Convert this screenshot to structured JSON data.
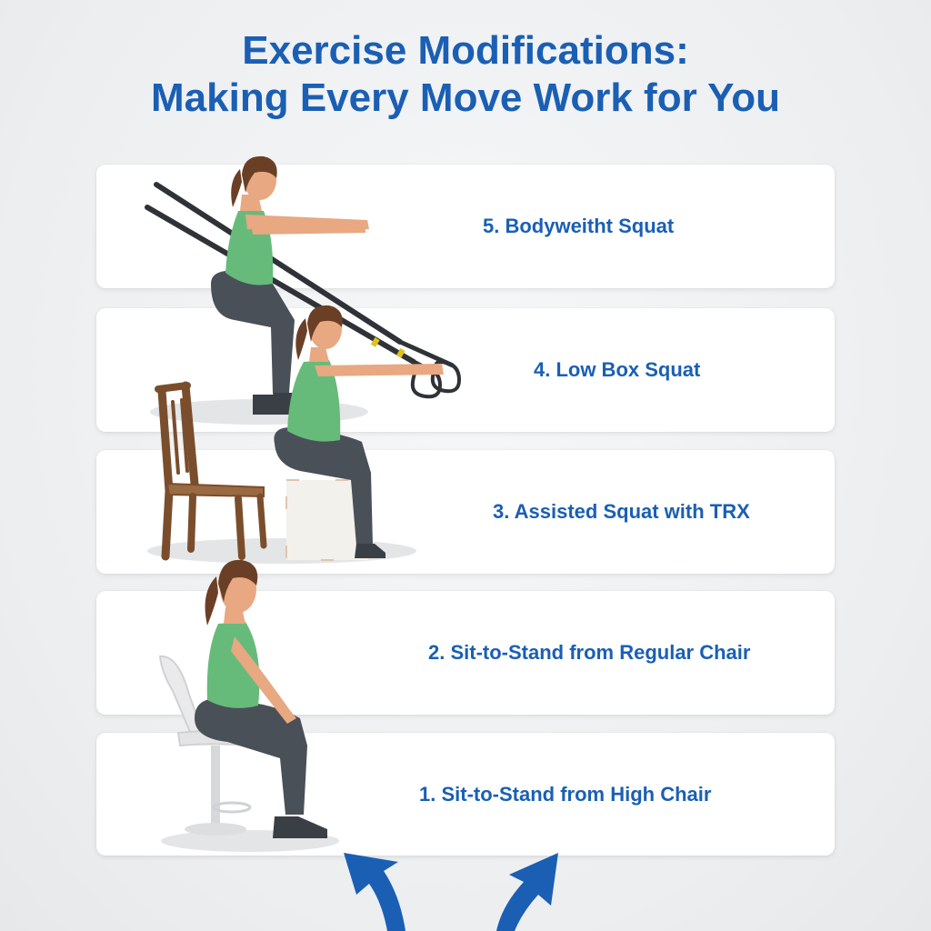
{
  "title": {
    "line1": "Exercise Modifications:",
    "line2": "Making Every Move Work for You"
  },
  "steps": [
    {
      "label": "5. Bodyweitht Squat"
    },
    {
      "label": "4. Low Box Squat"
    },
    {
      "label": "3. Assisted Squat with TRX"
    },
    {
      "label": "2. Sit-to-Stand from Regular Chair"
    },
    {
      "label": "1. Sit-to-Stand from High Chair"
    }
  ],
  "colors": {
    "accent": "#1a5fb4",
    "top": "#66bb7a",
    "leggings": "#4a5058",
    "skin": "#e8a882",
    "hair": "#6b3f26"
  },
  "icons": [
    "woman-figure-icon",
    "trx-strap-icon",
    "wooden-chair-icon",
    "plyo-box-icon",
    "high-stool-icon",
    "arrow-up-icon"
  ]
}
